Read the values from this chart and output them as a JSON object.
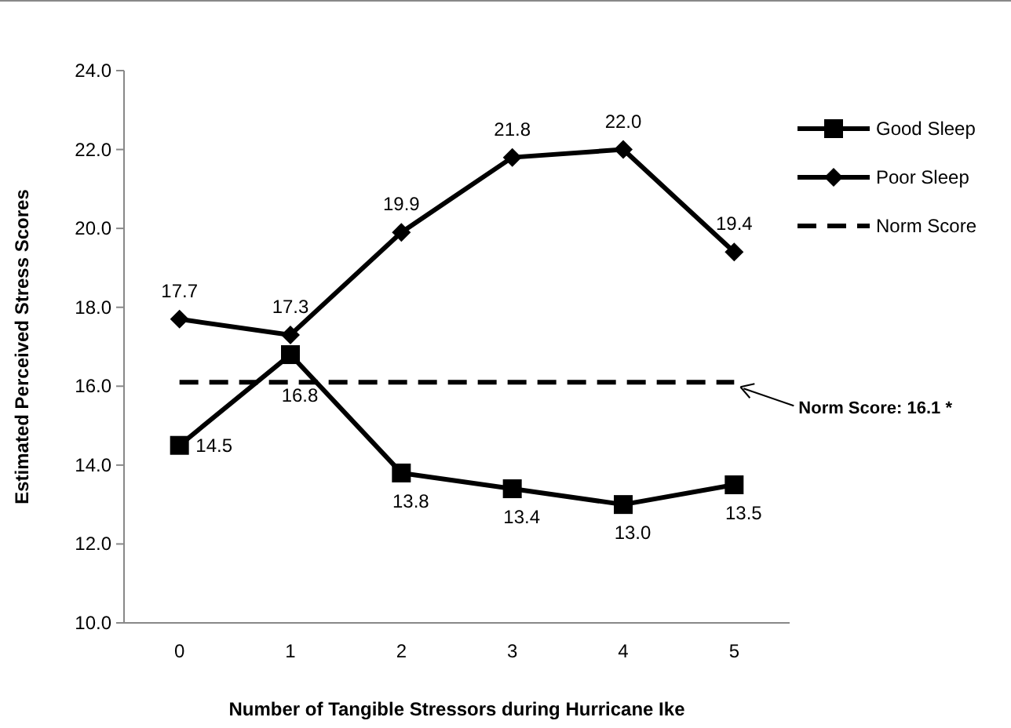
{
  "chart_data": {
    "type": "line",
    "xlabel": "Number of Tangible Stressors during Hurricane Ike",
    "ylabel": "Estimated Perceived Stress Scores",
    "categories": [
      "0",
      "1",
      "2",
      "3",
      "4",
      "5"
    ],
    "series": [
      {
        "name": "Good Sleep",
        "color": "#000000",
        "marker": "square",
        "line_style": "solid",
        "values": [
          14.5,
          16.8,
          13.8,
          13.4,
          13.0,
          13.5
        ],
        "value_labels": [
          "14.5",
          "16.8",
          "13.8",
          "13.4",
          "13.0",
          "13.5"
        ]
      },
      {
        "name": "Poor Sleep",
        "color": "#000000",
        "marker": "diamond",
        "line_style": "solid",
        "values": [
          17.7,
          17.3,
          19.9,
          21.8,
          22.0,
          19.4
        ],
        "value_labels": [
          "17.7",
          "17.3",
          "19.9",
          "21.8",
          "22.0",
          "19.4"
        ]
      },
      {
        "name": "Norm Score",
        "color": "#000000",
        "marker": "none",
        "line_style": "dashed",
        "values": [
          16.1,
          16.1,
          16.1,
          16.1,
          16.1,
          16.1
        ]
      }
    ],
    "ylim": [
      10,
      24
    ],
    "yticks": [
      {
        "value": 10,
        "label": "10.0"
      },
      {
        "value": 12,
        "label": "12.0"
      },
      {
        "value": 14,
        "label": "14.0"
      },
      {
        "value": 16,
        "label": "16.0"
      },
      {
        "value": 18,
        "label": "18.0"
      },
      {
        "value": 20,
        "label": "20.0"
      },
      {
        "value": 22,
        "label": "22.0"
      },
      {
        "value": 24,
        "label": "24.0"
      }
    ],
    "grid": false,
    "legend": "right",
    "annotations": [
      {
        "text": "Norm Score: 16.1 *",
        "x": "5",
        "y": 16.1
      }
    ]
  }
}
